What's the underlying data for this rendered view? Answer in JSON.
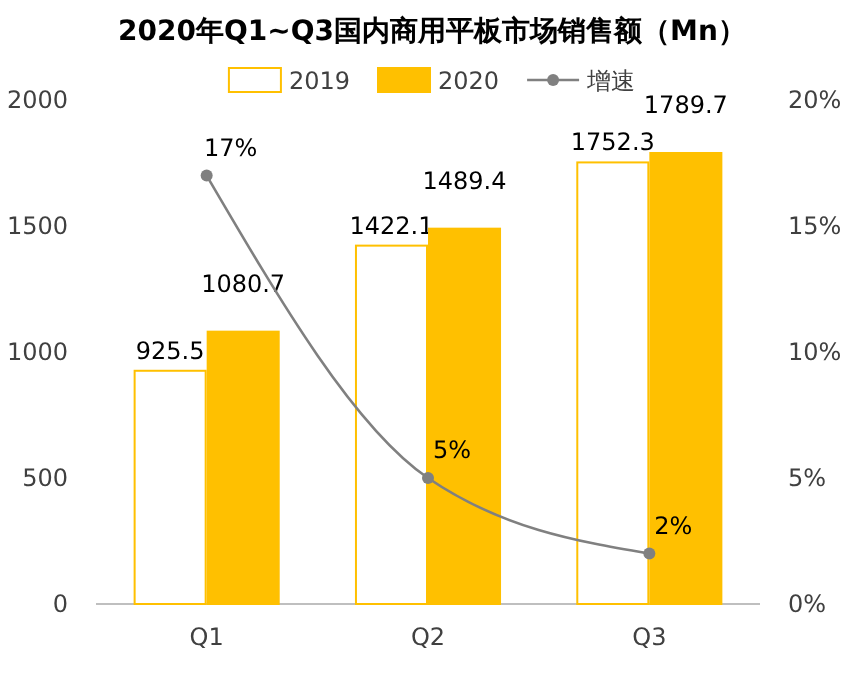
{
  "chart_data": {
    "type": "bar",
    "title": "2020年Q1~Q3国内商用平板市场销售额（Mn）",
    "categories": [
      "Q1",
      "Q2",
      "Q3"
    ],
    "series": [
      {
        "name": "2019",
        "color": "#ffffff",
        "values": [
          925.5,
          1422.1,
          1752.3
        ],
        "value_labels": [
          "925.5",
          "1422.1",
          "1752.3"
        ]
      },
      {
        "name": "2020",
        "color": "#ffc000",
        "values": [
          1080.7,
          1489.4,
          1789.7
        ],
        "value_labels": [
          "1080.7",
          "1489.4",
          "1789.7"
        ]
      },
      {
        "name": "增速",
        "type": "line",
        "axis": "y2",
        "color": "#808080",
        "values": [
          17,
          5,
          2
        ],
        "value_labels": [
          "17%",
          "5%",
          "2%"
        ]
      }
    ],
    "ylim": [
      0,
      2000
    ],
    "yticks": [
      0,
      500,
      1000,
      1500,
      2000
    ],
    "y2lim": [
      0,
      20
    ],
    "y2ticks": [
      {
        "value": 0,
        "label": "0%"
      },
      {
        "value": 5,
        "label": "5%"
      },
      {
        "value": 10,
        "label": "10%"
      },
      {
        "value": 15,
        "label": "15%"
      },
      {
        "value": 20,
        "label": "20%"
      }
    ],
    "legend": "top",
    "marker": "circle",
    "grid": false
  }
}
